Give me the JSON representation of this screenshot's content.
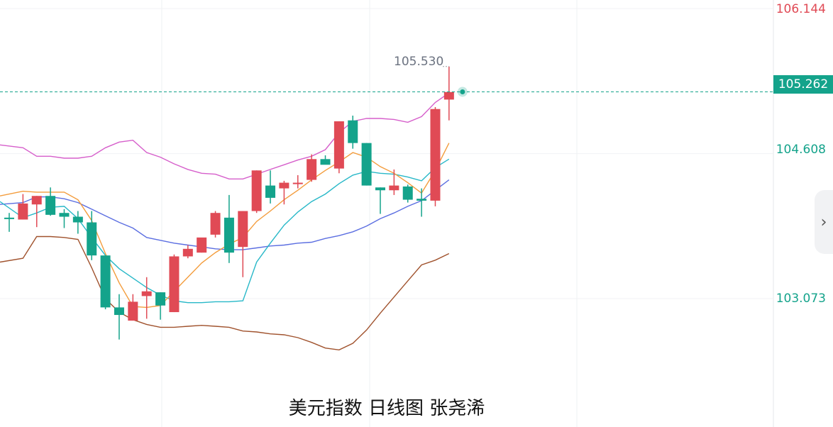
{
  "chart_data": {
    "type": "candlestick",
    "title": "美元指数 日线图 张尧浠",
    "axis_labels": [
      "106.144",
      "104.608",
      "103.073"
    ],
    "current_price": "105.262",
    "high_annotation": "105.530",
    "ylim": [
      102.0,
      106.3
    ],
    "colors": {
      "up": "#e04a55",
      "down": "#14a38b",
      "upper_band": "#d65fcb",
      "lower_band": "#a0522d",
      "mid_band": "#5b6ee1",
      "ma_fast": "#f39c3c",
      "ma_slow": "#28b8c8",
      "current_line": "#14a38b"
    },
    "candles": [
      {
        "o": 103.93,
        "h": 103.98,
        "l": 103.78,
        "c": 103.92
      },
      {
        "o": 103.91,
        "h": 104.18,
        "l": 103.91,
        "c": 104.08
      },
      {
        "o": 104.07,
        "h": 104.16,
        "l": 103.83,
        "c": 104.16
      },
      {
        "o": 104.16,
        "h": 104.25,
        "l": 103.95,
        "c": 103.96
      },
      {
        "o": 103.98,
        "h": 104.02,
        "l": 103.82,
        "c": 103.94
      },
      {
        "o": 103.94,
        "h": 104.0,
        "l": 103.76,
        "c": 103.88
      },
      {
        "o": 103.88,
        "h": 104.0,
        "l": 103.48,
        "c": 103.53
      },
      {
        "o": 103.53,
        "h": 103.53,
        "l": 102.96,
        "c": 102.98
      },
      {
        "o": 102.98,
        "h": 103.12,
        "l": 102.64,
        "c": 102.9
      },
      {
        "o": 102.84,
        "h": 103.12,
        "l": 102.84,
        "c": 103.04
      },
      {
        "o": 103.1,
        "h": 103.3,
        "l": 102.86,
        "c": 103.15
      },
      {
        "o": 103.14,
        "h": 103.14,
        "l": 102.85,
        "c": 103.0
      },
      {
        "o": 102.93,
        "h": 103.54,
        "l": 102.93,
        "c": 103.52
      },
      {
        "o": 103.52,
        "h": 103.64,
        "l": 103.5,
        "c": 103.6
      },
      {
        "o": 103.56,
        "h": 103.7,
        "l": 103.56,
        "c": 103.72
      },
      {
        "o": 103.75,
        "h": 104.0,
        "l": 103.72,
        "c": 103.98
      },
      {
        "o": 103.93,
        "h": 104.17,
        "l": 103.45,
        "c": 103.56
      },
      {
        "o": 103.62,
        "h": 104.0,
        "l": 103.3,
        "c": 104.0
      },
      {
        "o": 104.0,
        "h": 104.43,
        "l": 103.98,
        "c": 104.43
      },
      {
        "o": 104.27,
        "h": 104.43,
        "l": 104.08,
        "c": 104.14
      },
      {
        "o": 104.24,
        "h": 104.32,
        "l": 104.07,
        "c": 104.3
      },
      {
        "o": 104.3,
        "h": 104.38,
        "l": 104.24,
        "c": 104.3
      },
      {
        "o": 104.33,
        "h": 104.6,
        "l": 104.31,
        "c": 104.55
      },
      {
        "o": 104.55,
        "h": 104.59,
        "l": 104.5,
        "c": 104.49
      },
      {
        "o": 104.45,
        "h": 104.95,
        "l": 104.4,
        "c": 104.95
      },
      {
        "o": 104.96,
        "h": 105.01,
        "l": 104.66,
        "c": 104.72
      },
      {
        "o": 104.72,
        "h": 104.72,
        "l": 104.27,
        "c": 104.27
      },
      {
        "o": 104.25,
        "h": 104.25,
        "l": 103.97,
        "c": 104.22
      },
      {
        "o": 104.22,
        "h": 104.44,
        "l": 104.17,
        "c": 104.27
      },
      {
        "o": 104.26,
        "h": 104.28,
        "l": 104.09,
        "c": 104.12
      },
      {
        "o": 104.13,
        "h": 104.24,
        "l": 103.94,
        "c": 104.11
      },
      {
        "o": 104.11,
        "h": 105.1,
        "l": 104.05,
        "c": 105.08
      },
      {
        "o": 105.18,
        "h": 105.53,
        "l": 104.96,
        "c": 105.26
      }
    ],
    "upper_band": [
      104.7,
      104.67,
      104.58,
      104.58,
      104.56,
      104.56,
      104.58,
      104.67,
      104.73,
      104.75,
      104.62,
      104.57,
      104.5,
      104.44,
      104.4,
      104.39,
      104.34,
      104.34,
      104.39,
      104.44,
      104.49,
      104.54,
      104.58,
      104.65,
      104.83,
      104.95,
      104.98,
      104.98,
      104.97,
      104.94,
      105.0,
      105.15,
      105.25
    ],
    "lower_band": [
      103.46,
      103.5,
      103.73,
      103.73,
      103.72,
      103.7,
      103.4,
      103.07,
      102.93,
      102.85,
      102.8,
      102.77,
      102.77,
      102.78,
      102.79,
      102.78,
      102.77,
      102.73,
      102.72,
      102.7,
      102.69,
      102.66,
      102.61,
      102.55,
      102.53,
      102.6,
      102.74,
      102.92,
      103.09,
      103.26,
      103.43,
      103.48,
      103.55
    ],
    "mid_band": [
      104.07,
      104.09,
      104.15,
      104.15,
      104.13,
      104.09,
      104.02,
      103.95,
      103.88,
      103.82,
      103.72,
      103.69,
      103.66,
      103.64,
      103.62,
      103.6,
      103.59,
      103.59,
      103.61,
      103.63,
      103.64,
      103.66,
      103.67,
      103.71,
      103.74,
      103.78,
      103.84,
      103.92,
      103.98,
      104.05,
      104.11,
      104.22,
      104.33
    ],
    "ma_fast": [
      104.16,
      104.21,
      104.2,
      104.2,
      104.2,
      104.12,
      103.9,
      103.55,
      103.24,
      102.99,
      102.98,
      103.0,
      103.15,
      103.3,
      103.45,
      103.56,
      103.65,
      103.72,
      103.89,
      104.0,
      104.12,
      104.22,
      104.33,
      104.43,
      104.52,
      104.62,
      104.57,
      104.47,
      104.4,
      104.3,
      104.19,
      104.43,
      104.72
    ],
    "ma_slow": [
      104.1,
      103.93,
      103.98,
      104.04,
      104.05,
      103.92,
      103.72,
      103.53,
      103.39,
      103.29,
      103.19,
      103.11,
      103.05,
      103.03,
      103.03,
      103.04,
      103.04,
      103.05,
      103.46,
      103.66,
      103.85,
      103.99,
      104.1,
      104.18,
      104.29,
      104.38,
      104.42,
      104.4,
      104.39,
      104.36,
      104.32,
      104.46,
      104.55
    ]
  },
  "ui": {
    "scroll_icon": "›"
  }
}
